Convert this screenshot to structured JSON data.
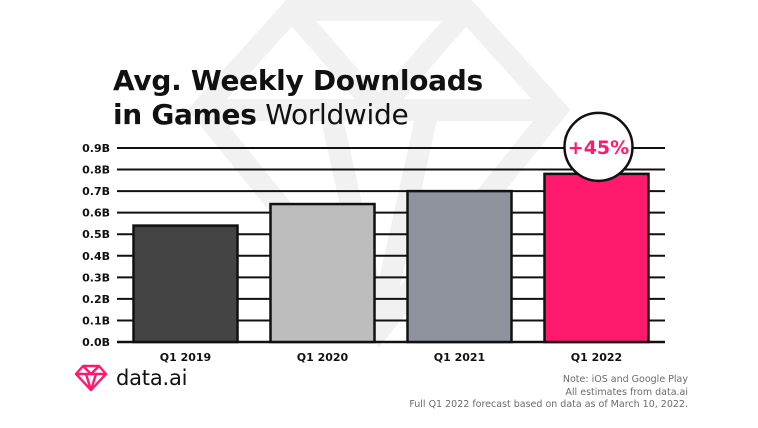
{
  "title": {
    "line1": "Avg. Weekly Downloads",
    "line2_bold": "in Games",
    "line2_light": " Worldwide"
  },
  "chart_data": {
    "type": "bar",
    "categories": [
      "Q1 2019",
      "Q1 2020",
      "Q1 2021",
      "Q1 2022"
    ],
    "values": [
      0.54,
      0.64,
      0.7,
      0.78
    ],
    "unit": "B",
    "ylim": [
      0,
      0.9
    ],
    "yticks": [
      "0.0B",
      "0.1B",
      "0.2B",
      "0.3B",
      "0.4B",
      "0.5B",
      "0.6B",
      "0.7B",
      "0.8B",
      "0.9B"
    ],
    "grid": true,
    "bar_colors": [
      "#444444",
      "#bdbdbd",
      "#8e939e",
      "#ff1a6e"
    ],
    "annotation": {
      "text": "+45%",
      "color": "#ff1a6e",
      "category": "Q1 2022"
    }
  },
  "brand": {
    "name": "data.ai",
    "icon": "data-ai-diamond-icon",
    "accent": "#ff1a6e"
  },
  "note": {
    "line1": "Note: iOS and Google Play",
    "line2": "All estimates from data.ai",
    "line3": "Full Q1 2022 forecast based on data as of March 10, 2022."
  }
}
